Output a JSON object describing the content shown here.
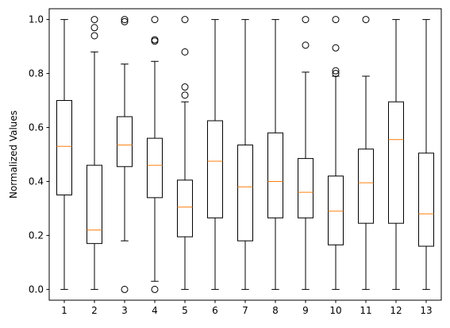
{
  "chart_data": {
    "type": "boxplot",
    "title": "",
    "xlabel": "",
    "ylabel": "Normalized Values",
    "ylim": [
      -0.04,
      1.04
    ],
    "yticks": [
      "0.0",
      "0.2",
      "0.4",
      "0.6",
      "0.8",
      "1.0"
    ],
    "categories": [
      "1",
      "2",
      "3",
      "4",
      "5",
      "6",
      "7",
      "8",
      "9",
      "10",
      "11",
      "12",
      "13"
    ],
    "grid": false,
    "colors": {
      "box": "#000000",
      "median": "#ff7f0e"
    },
    "boxes": [
      {
        "whislo": 0.0,
        "q1": 0.35,
        "med": 0.53,
        "q3": 0.7,
        "whishi": 1.0,
        "fliers": []
      },
      {
        "whislo": 0.0,
        "q1": 0.17,
        "med": 0.22,
        "q3": 0.46,
        "whishi": 0.88,
        "fliers": [
          0.94,
          0.97,
          1.0
        ]
      },
      {
        "whislo": 0.18,
        "q1": 0.455,
        "med": 0.535,
        "q3": 0.64,
        "whishi": 0.835,
        "fliers": [
          0.0,
          0.992,
          1.0
        ]
      },
      {
        "whislo": 0.03,
        "q1": 0.34,
        "med": 0.46,
        "q3": 0.56,
        "whishi": 0.845,
        "fliers": [
          0.0,
          0.92,
          0.925,
          1.0
        ]
      },
      {
        "whislo": 0.0,
        "q1": 0.195,
        "med": 0.305,
        "q3": 0.405,
        "whishi": 0.695,
        "fliers": [
          0.72,
          0.75,
          0.88,
          1.0
        ]
      },
      {
        "whislo": 0.0,
        "q1": 0.265,
        "med": 0.475,
        "q3": 0.625,
        "whishi": 1.0,
        "fliers": []
      },
      {
        "whislo": 0.0,
        "q1": 0.18,
        "med": 0.38,
        "q3": 0.535,
        "whishi": 1.0,
        "fliers": []
      },
      {
        "whislo": 0.0,
        "q1": 0.265,
        "med": 0.4,
        "q3": 0.58,
        "whishi": 1.0,
        "fliers": []
      },
      {
        "whislo": 0.0,
        "q1": 0.265,
        "med": 0.36,
        "q3": 0.485,
        "whishi": 0.805,
        "fliers": [
          0.905,
          1.0
        ]
      },
      {
        "whislo": 0.0,
        "q1": 0.165,
        "med": 0.29,
        "q3": 0.42,
        "whishi": 0.79,
        "fliers": [
          0.8,
          0.81,
          0.895,
          1.0
        ]
      },
      {
        "whislo": 0.0,
        "q1": 0.245,
        "med": 0.395,
        "q3": 0.52,
        "whishi": 0.79,
        "fliers": [
          1.0
        ]
      },
      {
        "whislo": 0.0,
        "q1": 0.245,
        "med": 0.555,
        "q3": 0.695,
        "whishi": 1.0,
        "fliers": []
      },
      {
        "whislo": 0.0,
        "q1": 0.16,
        "med": 0.28,
        "q3": 0.505,
        "whishi": 1.0,
        "fliers": []
      }
    ]
  }
}
